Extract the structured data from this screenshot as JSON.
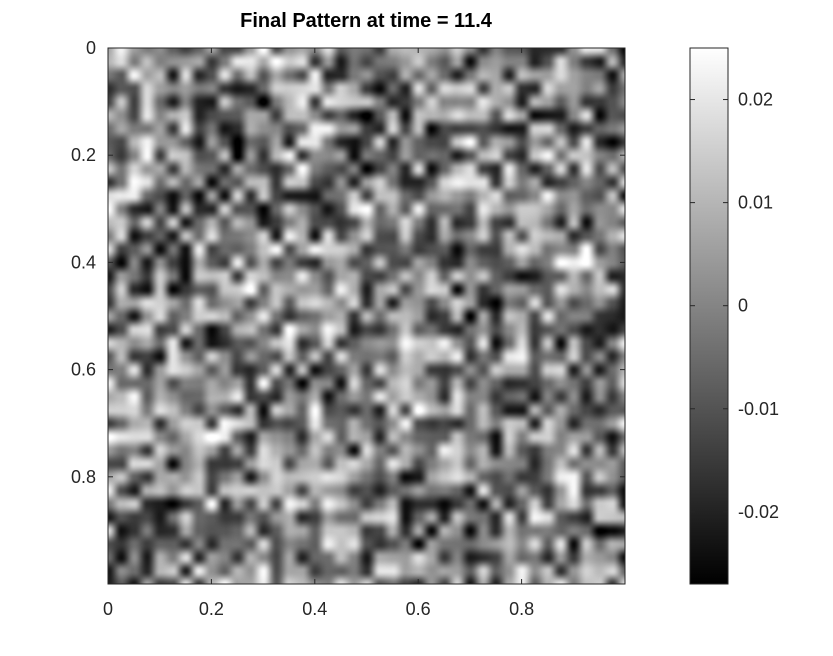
{
  "chart_data": {
    "type": "heatmap",
    "title": "Final Pattern at time = 11.4",
    "xlabel": "",
    "ylabel": "",
    "xlim": [
      0,
      1
    ],
    "ylim": [
      0,
      1
    ],
    "y_direction": "reversed",
    "colormap": "gray",
    "x_ticks": [
      0,
      0.2,
      0.4,
      0.6,
      0.8
    ],
    "x_tick_labels": [
      "0",
      "0.2",
      "0.4",
      "0.6",
      "0.8"
    ],
    "y_ticks": [
      0,
      0.2,
      0.4,
      0.6,
      0.8
    ],
    "y_tick_labels": [
      "0",
      "0.2",
      "0.4",
      "0.6",
      "0.8"
    ],
    "colorbar": {
      "range": [
        -0.027,
        0.025
      ],
      "ticks": [
        0.02,
        0.01,
        0,
        -0.01,
        -0.02
      ],
      "tick_labels": [
        "0.02",
        "0.01",
        "0",
        "-0.01",
        "-0.02"
      ],
      "placement": "right"
    },
    "field_description_values": {
      "mean": 0.0,
      "min": -0.027,
      "max": 0.025
    }
  }
}
